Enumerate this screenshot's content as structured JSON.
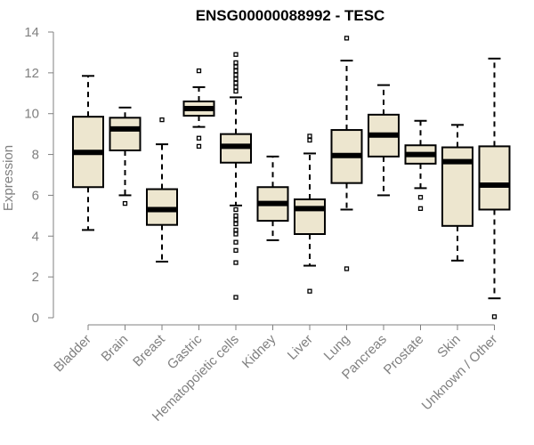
{
  "chart_data": {
    "type": "boxplot",
    "title": "ENSG00000088992 - TESC",
    "xlabel": "",
    "ylabel": "Expression",
    "ylim": [
      0,
      14
    ],
    "yticks": [
      0,
      2,
      4,
      6,
      8,
      10,
      12,
      14
    ],
    "box_fill": "#ede6cf",
    "box_stroke": "#000000",
    "axis_color": "#808080",
    "categories": [
      "Bladder",
      "Brain",
      "Breast",
      "Gastric",
      "Hematopoietic cells",
      "Kidney",
      "Liver",
      "Lung",
      "Pancreas",
      "Prostate",
      "Skin",
      "Unknown / Other"
    ],
    "boxes": [
      {
        "name": "Bladder",
        "min": 4.3,
        "q1": 6.4,
        "median": 8.1,
        "q3": 9.85,
        "max": 11.85,
        "outliers": []
      },
      {
        "name": "Brain",
        "min": 6.0,
        "q1": 8.2,
        "median": 9.25,
        "q3": 9.8,
        "max": 10.3,
        "outliers": [
          5.6
        ]
      },
      {
        "name": "Breast",
        "min": 2.75,
        "q1": 4.55,
        "median": 5.3,
        "q3": 6.3,
        "max": 8.5,
        "outliers": [
          9.7
        ]
      },
      {
        "name": "Gastric",
        "min": 9.35,
        "q1": 9.9,
        "median": 10.25,
        "q3": 10.6,
        "max": 11.3,
        "outliers": [
          12.1,
          8.8,
          8.4
        ]
      },
      {
        "name": "Hematopoietic cells",
        "min": 5.5,
        "q1": 7.6,
        "median": 8.4,
        "q3": 9.0,
        "max": 10.8,
        "outliers": [
          12.9,
          12.5,
          12.3,
          12.1,
          11.9,
          11.7,
          11.5,
          11.3,
          11.1,
          5.3,
          5.0,
          4.8,
          4.6,
          4.3,
          4.1,
          3.7,
          3.3,
          2.7,
          1.0
        ]
      },
      {
        "name": "Kidney",
        "min": 3.8,
        "q1": 4.75,
        "median": 5.6,
        "q3": 6.4,
        "max": 7.9,
        "outliers": []
      },
      {
        "name": "Liver",
        "min": 2.55,
        "q1": 4.1,
        "median": 5.35,
        "q3": 5.8,
        "max": 8.05,
        "outliers": [
          8.9,
          8.7,
          1.3
        ]
      },
      {
        "name": "Lung",
        "min": 5.3,
        "q1": 6.6,
        "median": 7.95,
        "q3": 9.2,
        "max": 12.6,
        "outliers": [
          13.7,
          2.4
        ]
      },
      {
        "name": "Pancreas",
        "min": 6.0,
        "q1": 7.9,
        "median": 8.95,
        "q3": 9.95,
        "max": 11.4,
        "outliers": []
      },
      {
        "name": "Prostate",
        "min": 6.35,
        "q1": 7.55,
        "median": 8.0,
        "q3": 8.45,
        "max": 9.65,
        "outliers": [
          5.9,
          5.35
        ]
      },
      {
        "name": "Skin",
        "min": 2.8,
        "q1": 4.5,
        "median": 7.65,
        "q3": 8.35,
        "max": 9.45,
        "outliers": []
      },
      {
        "name": "Unknown / Other",
        "min": 0.95,
        "q1": 5.3,
        "median": 6.5,
        "q3": 8.4,
        "max": 12.7,
        "outliers": [
          0.05
        ]
      }
    ]
  }
}
